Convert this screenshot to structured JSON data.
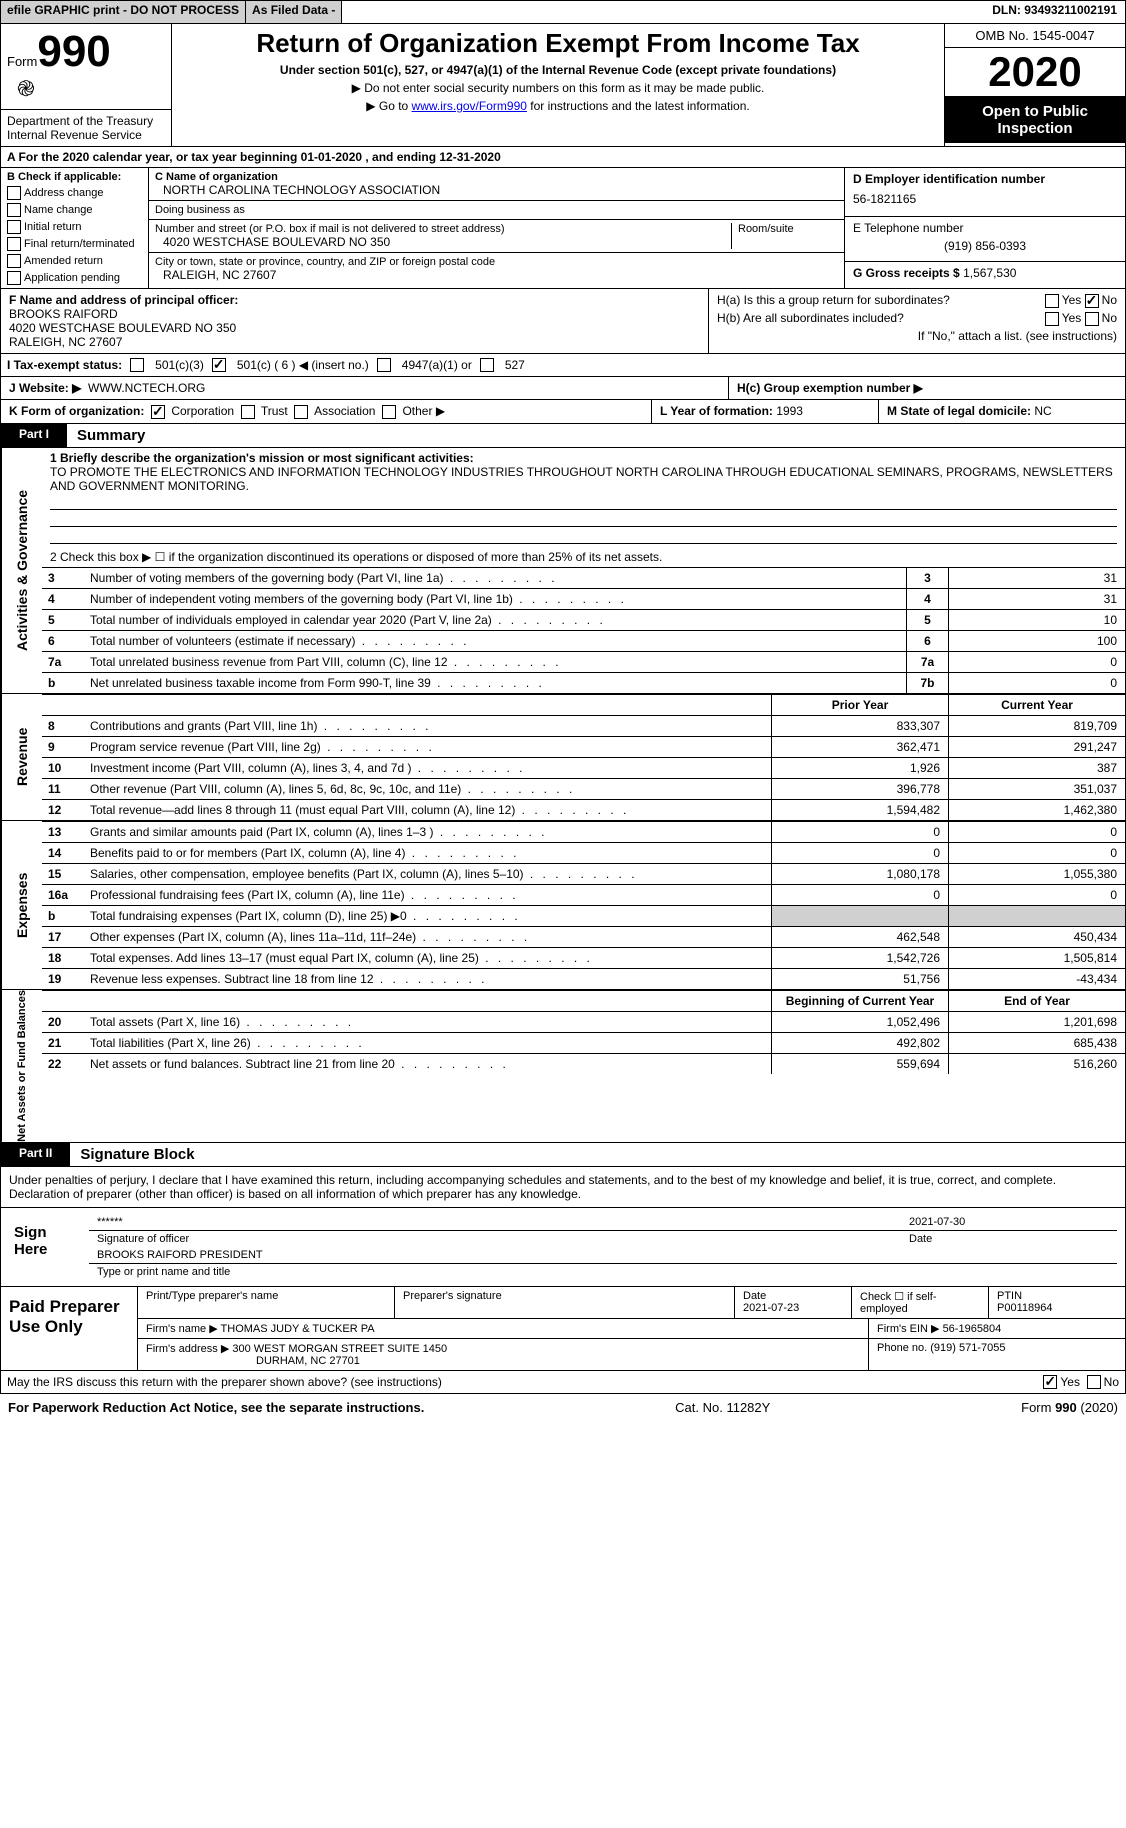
{
  "header": {
    "efile": "efile GRAPHIC print - DO NOT PROCESS",
    "asfiled": "As Filed Data -",
    "dln": "DLN: 93493211002191"
  },
  "formBox": {
    "formWord": "Form",
    "formNum": "990",
    "dept": "Department of the Treasury\nInternal Revenue Service"
  },
  "titleBlock": {
    "title": "Return of Organization Exempt From Income Tax",
    "sub": "Under section 501(c), 527, or 4947(a)(1) of the Internal Revenue Code (except private foundations)",
    "line1": "▶ Do not enter social security numbers on this form as it may be made public.",
    "line2a": "▶ Go to ",
    "line2link": "www.irs.gov/Form990",
    "line2b": " for instructions and the latest information."
  },
  "rightBox": {
    "omb": "OMB No. 1545-0047",
    "year": "2020",
    "open": "Open to Public Inspection"
  },
  "lineA": "A   For the 2020 calendar year, or tax year beginning 01-01-2020   , and ending 12-31-2020",
  "checkB": {
    "title": "B Check if applicable:",
    "items": [
      "Address change",
      "Name change",
      "Initial return",
      "Final return/terminated",
      "Amended return",
      "Application pending"
    ]
  },
  "orgBlock": {
    "cname_lbl": "C Name of organization",
    "cname": "NORTH CAROLINA TECHNOLOGY ASSOCIATION",
    "dba_lbl": "Doing business as",
    "dba": "",
    "addr_lbl": "Number and street (or P.O. box if mail is not delivered to street address)",
    "room_lbl": "Room/suite",
    "addr": "4020 WESTCHASE BOULEVARD NO 350",
    "city_lbl": "City or town, state or province, country, and ZIP or foreign postal code",
    "city": "RALEIGH, NC  27607"
  },
  "dcol": {
    "ein_lbl": "D Employer identification number",
    "ein": "56-1821165",
    "tel_lbl": "E Telephone number",
    "tel": "(919) 856-0393",
    "gross_lbl": "G Gross receipts $",
    "gross": "1,567,530"
  },
  "fg": {
    "f_lbl": "F  Name and address of principal officer:",
    "f_name": "BROOKS RAIFORD",
    "f_addr1": "4020 WESTCHASE BOULEVARD NO 350",
    "f_addr2": "RALEIGH, NC  27607"
  },
  "h": {
    "ha": "H(a) Is this a group return for subordinates?",
    "ha_yes": "Yes",
    "ha_no": "No",
    "hb": "H(b) Are all subordinates included?",
    "hnote": "If \"No,\" attach a list. (see instructions)",
    "hc": "H(c) Group exemption number ▶"
  },
  "i": {
    "lbl": "I  Tax-exempt status:",
    "o1": "501(c)(3)",
    "o2": "501(c) ( 6 ) ◀ (insert no.)",
    "o3": "4947(a)(1) or",
    "o4": "527"
  },
  "j": {
    "lbl": "J  Website: ▶",
    "val": "WWW.NCTECH.ORG"
  },
  "k": {
    "lbl": "K Form of organization:",
    "o1": "Corporation",
    "o2": "Trust",
    "o3": "Association",
    "o4": "Other ▶"
  },
  "l": {
    "lbl": "L Year of formation:",
    "val": "1993"
  },
  "m": {
    "lbl": "M State of legal domicile:",
    "val": "NC"
  },
  "part1": {
    "num": "Part I",
    "title": "Summary"
  },
  "summary": {
    "q1": "1  Briefly describe the organization's mission or most significant activities:",
    "q1text": "TO PROMOTE THE ELECTRONICS AND INFORMATION TECHNOLOGY INDUSTRIES THROUGHOUT NORTH CAROLINA THROUGH EDUCATIONAL SEMINARS, PROGRAMS, NEWSLETTERS AND GOVERNMENT MONITORING.",
    "q2": "2   Check this box ▶ ☐ if the organization discontinued its operations or disposed of more than 25% of its net assets.",
    "rows": [
      {
        "n": "3",
        "lbl": "Number of voting members of the governing body (Part VI, line 1a)",
        "box": "3",
        "val": "31"
      },
      {
        "n": "4",
        "lbl": "Number of independent voting members of the governing body (Part VI, line 1b)",
        "box": "4",
        "val": "31"
      },
      {
        "n": "5",
        "lbl": "Total number of individuals employed in calendar year 2020 (Part V, line 2a)",
        "box": "5",
        "val": "10"
      },
      {
        "n": "6",
        "lbl": "Total number of volunteers (estimate if necessary)",
        "box": "6",
        "val": "100"
      },
      {
        "n": "7a",
        "lbl": "Total unrelated business revenue from Part VIII, column (C), line 12",
        "box": "7a",
        "val": "0"
      },
      {
        "n": "b",
        "lbl": "Net unrelated business taxable income from Form 990-T, line 39",
        "box": "7b",
        "val": "0"
      }
    ]
  },
  "rev": {
    "side": "Revenue",
    "hd_prior": "Prior Year",
    "hd_cur": "Current Year",
    "rows": [
      {
        "n": "8",
        "lbl": "Contributions and grants (Part VIII, line 1h)",
        "p": "833,307",
        "c": "819,709"
      },
      {
        "n": "9",
        "lbl": "Program service revenue (Part VIII, line 2g)",
        "p": "362,471",
        "c": "291,247"
      },
      {
        "n": "10",
        "lbl": "Investment income (Part VIII, column (A), lines 3, 4, and 7d )",
        "p": "1,926",
        "c": "387"
      },
      {
        "n": "11",
        "lbl": "Other revenue (Part VIII, column (A), lines 5, 6d, 8c, 9c, 10c, and 11e)",
        "p": "396,778",
        "c": "351,037"
      },
      {
        "n": "12",
        "lbl": "Total revenue—add lines 8 through 11 (must equal Part VIII, column (A), line 12)",
        "p": "1,594,482",
        "c": "1,462,380"
      }
    ]
  },
  "exp": {
    "side": "Expenses",
    "rows": [
      {
        "n": "13",
        "lbl": "Grants and similar amounts paid (Part IX, column (A), lines 1–3 )",
        "p": "0",
        "c": "0"
      },
      {
        "n": "14",
        "lbl": "Benefits paid to or for members (Part IX, column (A), line 4)",
        "p": "0",
        "c": "0"
      },
      {
        "n": "15",
        "lbl": "Salaries, other compensation, employee benefits (Part IX, column (A), lines 5–10)",
        "p": "1,080,178",
        "c": "1,055,380"
      },
      {
        "n": "16a",
        "lbl": "Professional fundraising fees (Part IX, column (A), line 11e)",
        "p": "0",
        "c": "0"
      },
      {
        "n": "b",
        "lbl": "Total fundraising expenses (Part IX, column (D), line 25) ▶0",
        "p": "",
        "c": "",
        "grey": true
      },
      {
        "n": "17",
        "lbl": "Other expenses (Part IX, column (A), lines 11a–11d, 11f–24e)",
        "p": "462,548",
        "c": "450,434"
      },
      {
        "n": "18",
        "lbl": "Total expenses. Add lines 13–17 (must equal Part IX, column (A), line 25)",
        "p": "1,542,726",
        "c": "1,505,814"
      },
      {
        "n": "19",
        "lbl": "Revenue less expenses. Subtract line 18 from line 12",
        "p": "51,756",
        "c": "-43,434"
      }
    ]
  },
  "na": {
    "side": "Net Assets or Fund Balances",
    "hd_beg": "Beginning of Current Year",
    "hd_end": "End of Year",
    "rows": [
      {
        "n": "20",
        "lbl": "Total assets (Part X, line 16)",
        "p": "1,052,496",
        "c": "1,201,698"
      },
      {
        "n": "21",
        "lbl": "Total liabilities (Part X, line 26)",
        "p": "492,802",
        "c": "685,438"
      },
      {
        "n": "22",
        "lbl": "Net assets or fund balances. Subtract line 21 from line 20",
        "p": "559,694",
        "c": "516,260"
      }
    ]
  },
  "part2": {
    "num": "Part II",
    "title": "Signature Block"
  },
  "sigdecl": "Under penalties of perjury, I declare that I have examined this return, including accompanying schedules and statements, and to the best of my knowledge and belief, it is true, correct, and complete. Declaration of preparer (other than officer) is based on all information of which preparer has any knowledge.",
  "sign": {
    "lbl": "Sign Here",
    "stars": "******",
    "date": "2021-07-30",
    "sigoff": "Signature of officer",
    "dtl": "Date",
    "name": "BROOKS RAIFORD  PRESIDENT",
    "typel": "Type or print name and title"
  },
  "prep": {
    "lbl": "Paid Preparer Use Only",
    "h1": "Print/Type preparer's name",
    "h2": "Preparer's signature",
    "h3": "Date",
    "h3v": "2021-07-23",
    "h4": "Check ☐ if self-employed",
    "h5": "PTIN",
    "h5v": "P00118964",
    "firm_lbl": "Firm's name    ▶",
    "firm": "THOMAS JUDY & TUCKER PA",
    "fein_lbl": "Firm's EIN ▶",
    "fein": "56-1965804",
    "addr_lbl": "Firm's address ▶",
    "addr1": "300 WEST MORGAN STREET SUITE 1450",
    "addr2": "DURHAM, NC  27701",
    "ph_lbl": "Phone no.",
    "ph": "(919) 571-7055"
  },
  "discuss": "May the IRS discuss this return with the preparer shown above? (see instructions)",
  "discuss_yes": "Yes",
  "discuss_no": "No",
  "foot": {
    "l": "For Paperwork Reduction Act Notice, see the separate instructions.",
    "c": "Cat. No. 11282Y",
    "r": "Form 990 (2020)"
  }
}
